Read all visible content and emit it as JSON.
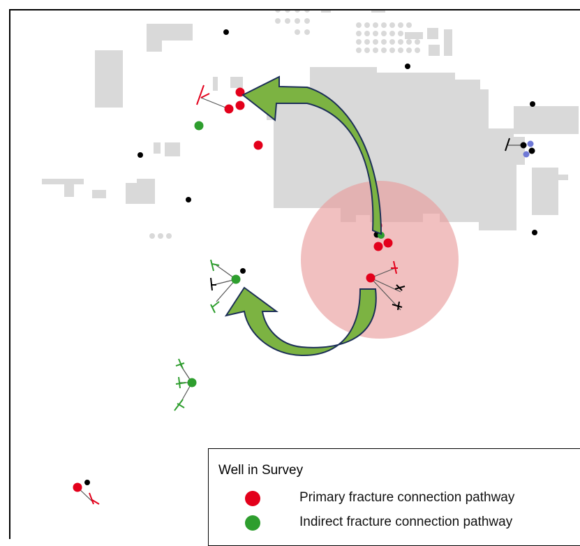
{
  "colors": {
    "building": "#d9d9d9",
    "primary": "#e3001b",
    "indirect": "#2e9e2e",
    "other_well": "#000000",
    "blue_well": "#6f79d6",
    "impact_zone": "#e89a9a",
    "arrow_fill": "#7cb342",
    "arrow_outline": "#1c2f57"
  },
  "legend": {
    "title": "Well in Survey",
    "items": [
      {
        "label": "Primary fracture connection pathway",
        "color": "#e3001b"
      },
      {
        "label": "Indirect fracture connection pathway",
        "color": "#2e9e2e"
      }
    ]
  },
  "icons": {
    "arrow_upper": "curved-arrow-icon",
    "arrow_lower": "curved-arrow-icon",
    "well": "well-dot-icon",
    "tick": "fracture-tick-icon"
  }
}
